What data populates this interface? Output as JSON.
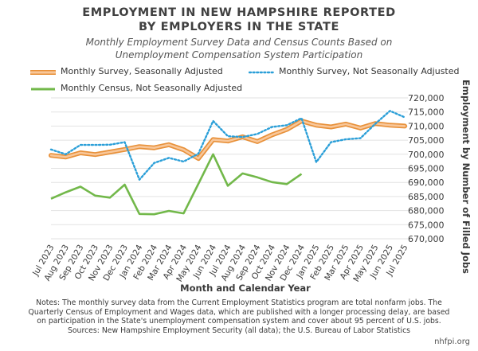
{
  "title_lines": [
    "EMPLOYMENT IN NEW HAMPSHIRE REPORTED",
    "BY EMPLOYERS IN THE STATE"
  ],
  "subtitle_lines": [
    "Monthly Employment Survey Data and Census Counts Based on",
    "Unemployment Compensation System Participation"
  ],
  "colors": {
    "sa": "#f3a65a",
    "sa_edge": "#e8913a",
    "nsa": "#2b9fd8",
    "census": "#72b84a",
    "grid": "#e2e2e2",
    "text": "#3a3a3a"
  },
  "chart_data": {
    "type": "line",
    "xlabel": "Month and Calendar Year",
    "ylabel": "Employment by Number of Filled Jobs",
    "ylim": [
      670000,
      720000
    ],
    "yticks": [
      670000,
      675000,
      680000,
      685000,
      690000,
      695000,
      700000,
      705000,
      710000,
      715000,
      720000
    ],
    "ytick_labels": [
      "670,000",
      "675,000",
      "680,000",
      "685,000",
      "690,000",
      "695,000",
      "700,000",
      "705,000",
      "710,000",
      "715,000",
      "720,000"
    ],
    "grid": true,
    "legend_position": "top",
    "categories": [
      "Jul 2023",
      "Aug 2023",
      "Sep 2023",
      "Oct 2023",
      "Nov 2023",
      "Dec 2023",
      "Jan 2024",
      "Feb 2024",
      "Mar 2024",
      "Apr 2024",
      "May 2024",
      "Jun 2024",
      "Jul 2024",
      "Aug 2024",
      "Sep 2024",
      "Oct 2024",
      "Nov 2024",
      "Dec 2024",
      "Jan 2025",
      "Feb 2025",
      "Mar 2025",
      "Apr 2025",
      "May 2025",
      "Jun 2025",
      "Jul 2025"
    ],
    "series": [
      {
        "name": "Monthly Survey, Seasonally Adjusted",
        "style": "thick-solid",
        "values": [
          699600,
          699000,
          700500,
          699900,
          700800,
          701700,
          702700,
          702300,
          703400,
          701600,
          698500,
          705200,
          704700,
          706200,
          704500,
          706900,
          708800,
          711800,
          710300,
          709700,
          710700,
          709300,
          710900,
          710300,
          710000
        ]
      },
      {
        "name": "Monthly Survey, Not Seasonally Adjusted",
        "style": "dotted",
        "values": [
          701700,
          700000,
          703300,
          703300,
          703400,
          704300,
          691000,
          696900,
          698700,
          697400,
          700200,
          711800,
          706400,
          706100,
          707200,
          709700,
          710300,
          712800,
          697200,
          704300,
          705300,
          705700,
          710800,
          715400,
          713100
        ]
      },
      {
        "name": "Monthly Census, Not Seasonally Adjusted",
        "style": "solid",
        "values": [
          684200,
          686500,
          688500,
          685300,
          684600,
          689200,
          678800,
          678700,
          679900,
          679000,
          689500,
          700000,
          688800,
          693200,
          691800,
          690100,
          689400,
          693000,
          null,
          null,
          null,
          null,
          null,
          null,
          null
        ]
      }
    ]
  },
  "notes_lines": [
    "Notes: The monthly survey data from the Current Employment Statistics program are total nonfarm jobs. The",
    "Quarterly Census of Employment and Wages data, which are published with a longer processing delay, are based",
    "on participation in the State's unemployment compensation system and cover about 95 percent of U.S. jobs.",
    "Sources: New Hampshire Employment Security (all data); the U.S. Bureau of Labor Statistics"
  ],
  "site": "nhfpi.org"
}
